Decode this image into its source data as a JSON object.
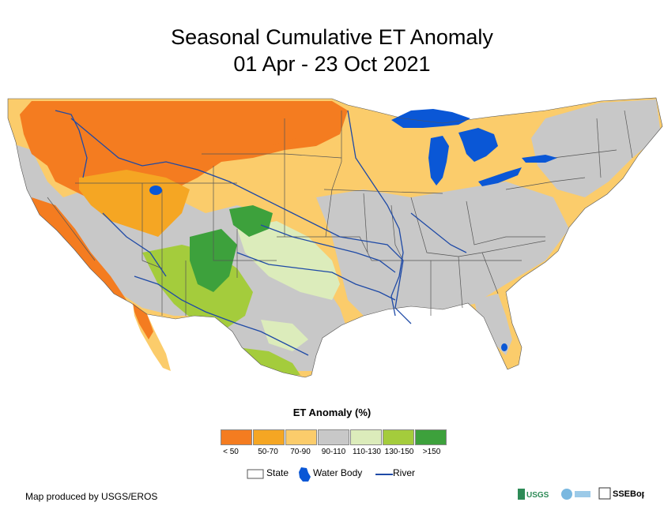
{
  "title": {
    "line1": "Seasonal Cumulative ET Anomaly",
    "line2": "01 Apr - 23 Oct 2021"
  },
  "legend": {
    "title": "ET Anomaly (%)",
    "classes": [
      {
        "label": "< 50",
        "color": "#f47c20"
      },
      {
        "label": "50-70",
        "color": "#f5a623"
      },
      {
        "label": "70-90",
        "color": "#fbcc6b"
      },
      {
        "label": "90-110",
        "color": "#c8c8c8"
      },
      {
        "label": "110-130",
        "color": "#dcecbb"
      },
      {
        "label": "130-150",
        "color": "#a4cc3c"
      },
      {
        "label": ">150",
        "color": "#3da13c"
      }
    ],
    "keys": {
      "state": "State",
      "water_body": "Water Body",
      "river": "River"
    }
  },
  "colors": {
    "water": "#0a57d6",
    "river": "#1f4aa6",
    "state_border": "#555555"
  },
  "credit": "Map produced by USGS/EROS",
  "logos": [
    "USGS",
    "SSEBop"
  ]
}
